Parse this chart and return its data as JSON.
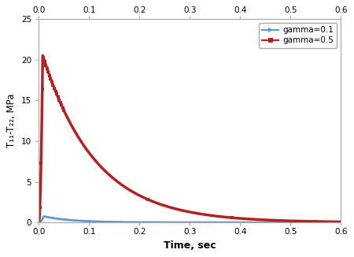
{
  "title": "",
  "xlabel": "Time, sec",
  "ylabel": "T₁₁-T₂₂, MPa",
  "xlim": [
    0,
    0.6
  ],
  "ylim": [
    0,
    25
  ],
  "xticks": [
    0,
    0.1,
    0.2,
    0.3,
    0.4,
    0.5,
    0.6
  ],
  "yticks": [
    0,
    5,
    10,
    15,
    20,
    25
  ],
  "legend": [
    {
      "label": "gamma=0.1",
      "color": "#5b9bd5",
      "marker": ">"
    },
    {
      "label": "gamma=0.5",
      "color": "#b22222",
      "marker": "s"
    }
  ],
  "gamma_01": {
    "peak_time": 0.01,
    "peak_value": 0.75,
    "decay_rate": 18,
    "color": "#5b9bd5",
    "linewidth": 2.0
  },
  "gamma_05": {
    "peak_time": 0.008,
    "peak_value": 20.5,
    "decay_rate": 9.5,
    "color": "#b22222",
    "linewidth": 2.5
  },
  "background_color": "#ffffff",
  "spine_color": "#aaaaaa"
}
